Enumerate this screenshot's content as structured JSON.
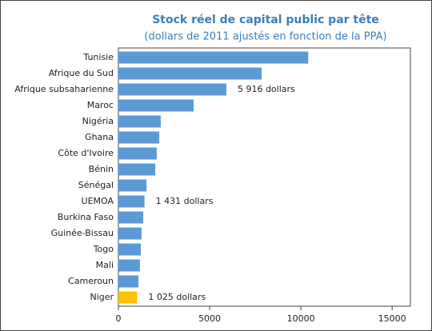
{
  "chart_data": {
    "type": "barh",
    "title": "Stock réel de capital public par tête",
    "subtitle": "(dollars de 2011 ajustés en fonction de la PPA)",
    "categories": [
      "Tunisie",
      "Afrique du Sud",
      "Afrique subsaharienne",
      "Maroc",
      "Nigéria",
      "Ghana",
      "Côte d'Ivoire",
      "Bénin",
      "Sénégal",
      "UEMOA",
      "Burkina Faso",
      "Guinée-Bissau",
      "Togo",
      "Mali",
      "Cameroun",
      "Niger"
    ],
    "values": [
      10400,
      7850,
      5916,
      4120,
      2320,
      2240,
      2100,
      2020,
      1540,
      1431,
      1360,
      1270,
      1230,
      1180,
      1100,
      1025
    ],
    "value_labels": [
      null,
      null,
      "5 916 dollars",
      null,
      null,
      null,
      null,
      null,
      null,
      "1 431 dollars",
      null,
      null,
      null,
      null,
      null,
      "1 025 dollars"
    ],
    "colors": [
      "#5b9bd5",
      "#5b9bd5",
      "#5b9bd5",
      "#5b9bd5",
      "#5b9bd5",
      "#5b9bd5",
      "#5b9bd5",
      "#5b9bd5",
      "#5b9bd5",
      "#5b9bd5",
      "#5b9bd5",
      "#5b9bd5",
      "#5b9bd5",
      "#5b9bd5",
      "#5b9bd5",
      "#ffc000"
    ],
    "xlim": [
      0,
      16000
    ],
    "xticks": [
      0,
      5000,
      10000,
      15000
    ],
    "grid": false
  }
}
